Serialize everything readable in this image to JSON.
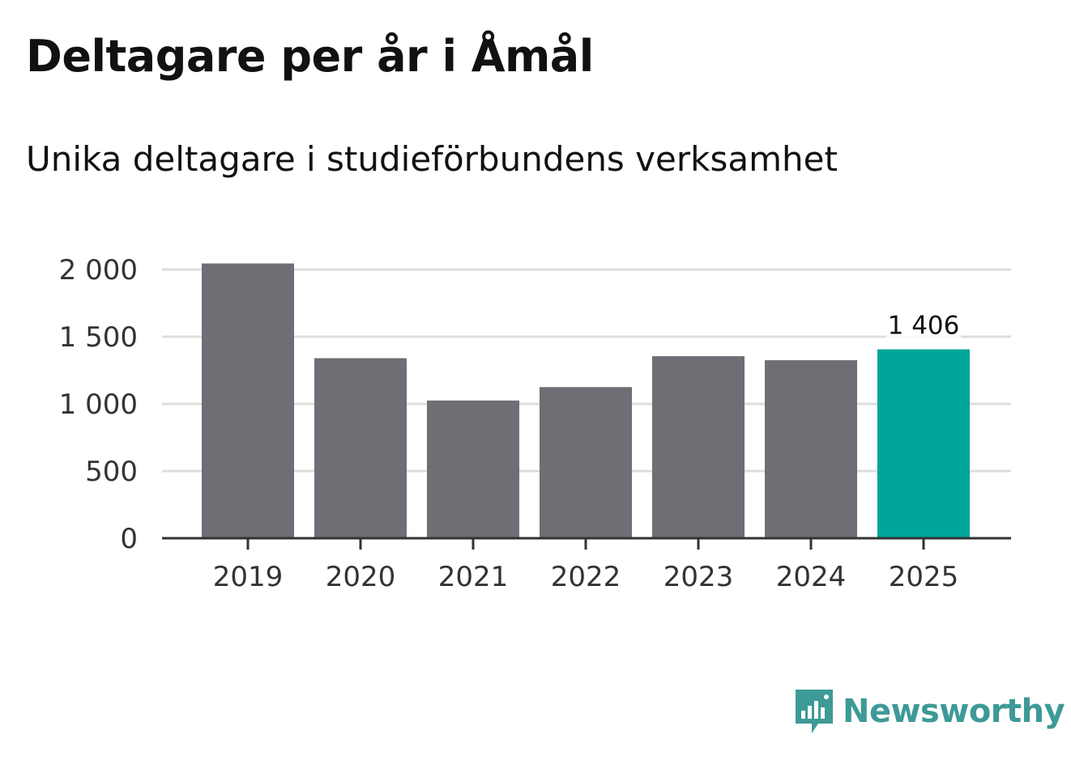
{
  "title": "Deltagare per år i Åmål",
  "subtitle": "Unika deltagare i studieförbundens verksamhet",
  "brand": {
    "name": "Newsworthy",
    "color": "#3d9a96"
  },
  "colors": {
    "bar": "#6f6e74",
    "highlight": "#00a599",
    "grid": "#dddddd",
    "axis": "#333333"
  },
  "chart_data": {
    "type": "bar",
    "title": "Deltagare per år i Åmål",
    "subtitle": "Unika deltagare i studieförbundens verksamhet",
    "categories": [
      "2019",
      "2020",
      "2021",
      "2022",
      "2023",
      "2024",
      "2025"
    ],
    "values": [
      2045,
      1340,
      1025,
      1125,
      1355,
      1325,
      1406
    ],
    "highlight_index": 6,
    "data_labels": [
      {
        "index": 6,
        "text": "1 406"
      }
    ],
    "yticks": [
      0,
      500,
      1000,
      1500,
      2000
    ],
    "ytick_labels": [
      "0",
      "500",
      "1 000",
      "1 500",
      "2 000"
    ],
    "ylim": [
      0,
      2000
    ],
    "xlabel": "",
    "ylabel": "",
    "grid": true
  }
}
